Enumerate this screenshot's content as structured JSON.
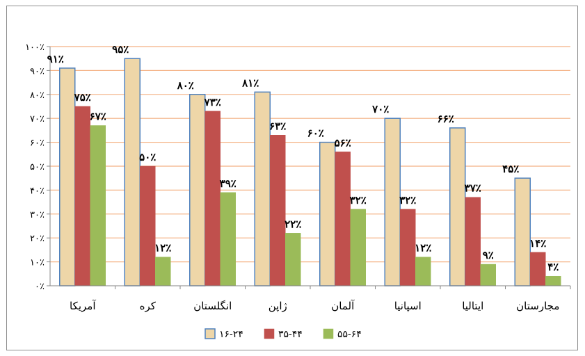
{
  "chart_data": {
    "type": "bar",
    "title": "",
    "xlabel": "",
    "ylabel": "",
    "ylim": [
      0,
      100
    ],
    "y_ticks": [
      "۰٪",
      "۱۰٪",
      "۲۰٪",
      "۳۰٪",
      "۴۰٪",
      "۵۰٪",
      "۶۰٪",
      "۷۰٪",
      "۸۰٪",
      "۹۰٪",
      "۱۰۰٪"
    ],
    "grid": true,
    "legend_position": "bottom",
    "categories": [
      "آمریکا",
      "کره",
      "انگلستان",
      "ژاپن",
      "آلمان",
      "اسپانیا",
      "ایتالیا",
      "مجارستان"
    ],
    "series": [
      {
        "name": "۱۶-۲۴",
        "color": "#EED6A8",
        "border": "#4F81BD",
        "values": [
          91,
          95,
          80,
          81,
          60,
          70,
          66,
          45
        ],
        "labels": [
          "۹۱٪",
          "۹۵٪",
          "۸۰٪",
          "۸۱٪",
          "۶۰٪",
          "۷۰٪",
          "۶۶٪",
          "۴۵٪"
        ]
      },
      {
        "name": "۳۵-۴۴",
        "color": "#C0504D",
        "border": "#C0504D",
        "values": [
          75,
          50,
          73,
          63,
          56,
          32,
          37,
          14
        ],
        "labels": [
          "۷۵٪",
          "۵۰٪",
          "۷۳٪",
          "۶۳٪",
          "۵۶٪",
          "۳۲٪",
          "۳۷٪",
          "۱۴٪"
        ]
      },
      {
        "name": "۵۵-۶۴",
        "color": "#9BBB59",
        "border": "#9BBB59",
        "values": [
          67,
          12,
          39,
          22,
          32,
          12,
          9,
          4
        ],
        "labels": [
          "۶۷٪",
          "۱۲٪",
          "۳۹٪",
          "۲۲٪",
          "۳۲٪",
          "۱۲٪",
          "۹٪",
          "۴٪"
        ]
      }
    ],
    "colors": {
      "grid": "#F4B183",
      "axis": "#868686"
    }
  }
}
